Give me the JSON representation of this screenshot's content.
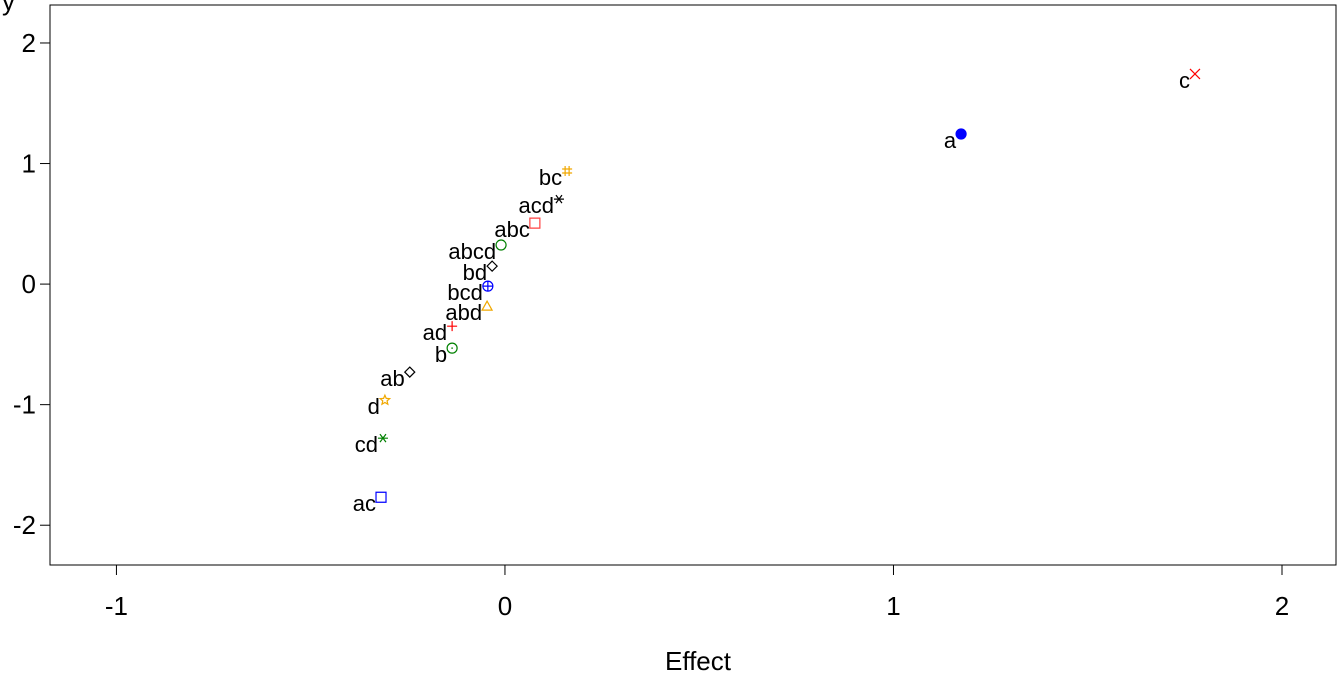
{
  "chart_data": {
    "type": "scatter",
    "xlabel": "Effect",
    "ylabel": "y",
    "point_labels": [
      "a",
      "c",
      "bc",
      "acd",
      "abc",
      "abcd",
      "bd",
      "bcd",
      "abd",
      "ad",
      "b",
      "ab",
      "d",
      "cd",
      "ac"
    ],
    "x": [
      1.174,
      1.776,
      0.16,
      0.139,
      0.077,
      -0.01,
      -0.033,
      -0.044,
      -0.046,
      -0.136,
      -0.136,
      -0.245,
      -0.309,
      -0.314,
      -0.319
    ],
    "values": [
      1.245,
      1.743,
      0.938,
      0.705,
      0.506,
      0.324,
      0.149,
      -0.017,
      -0.183,
      -0.349,
      -0.531,
      -0.73,
      -0.963,
      -1.278,
      -1.768
    ],
    "colors": [
      "#0000ff",
      "#ff0000",
      "#f0a800",
      "#000000",
      "#ff4040",
      "#008000",
      "#000000",
      "#0000ff",
      "#f0a800",
      "#ff0000",
      "#008000",
      "#000000",
      "#f0a800",
      "#008000",
      "#0000ff"
    ],
    "markers": [
      "dot",
      "x",
      "hash",
      "asterisk",
      "square",
      "circle",
      "diamond",
      "circleplus",
      "triangle",
      "plus",
      "circledot",
      "diamond",
      "star",
      "asterisk",
      "square"
    ],
    "xlim": [
      -1.171,
      2.139
    ],
    "xticks": [
      -1,
      0,
      1,
      2
    ],
    "ylim": [
      -2.33,
      2.315
    ],
    "yticks": [
      -2,
      -1,
      0,
      1,
      2
    ]
  }
}
